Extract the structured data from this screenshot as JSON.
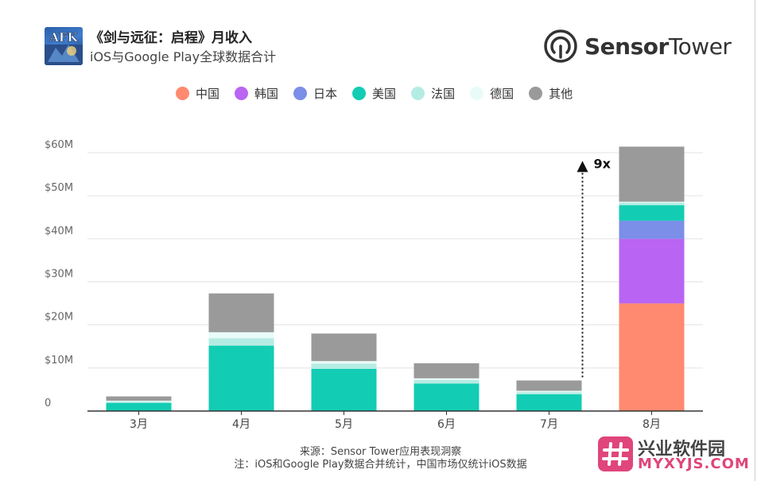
{
  "header": {
    "logo_text": "AFK",
    "title": "《剑与远征：启程》月收入",
    "subtitle": "iOS与Google Play全球数据合计"
  },
  "brand": {
    "name_bold": "Sensor",
    "name_regular": "Tower",
    "icon": "sensor-tower-logo-icon"
  },
  "legend": [
    {
      "name": "中国",
      "color": "#ff8a70"
    },
    {
      "name": "韩国",
      "color": "#b964f2"
    },
    {
      "name": "日本",
      "color": "#7b8ee8"
    },
    {
      "name": "美国",
      "color": "#12cdb3"
    },
    {
      "name": "法国",
      "color": "#b4ece3"
    },
    {
      "name": "德国",
      "color": "#e9fbf8"
    },
    {
      "name": "其他",
      "color": "#9a9a9a"
    }
  ],
  "chart_data": {
    "type": "bar",
    "stacked": true,
    "categories": [
      "3月",
      "4月",
      "5月",
      "6月",
      "7月",
      "8月"
    ],
    "y_ticks": [
      "0",
      "$10M",
      "$20M",
      "$30M",
      "$40M",
      "$50M",
      "$60M"
    ],
    "ylim": [
      0,
      60
    ],
    "y_unit": "$M",
    "grid": true,
    "legend_position": "top",
    "series": [
      {
        "name": "中国",
        "color": "#ff8a70",
        "values": [
          0,
          0,
          0,
          0,
          0,
          25
        ]
      },
      {
        "name": "韩国",
        "color": "#b964f2",
        "values": [
          0,
          0,
          0,
          0,
          0,
          15
        ]
      },
      {
        "name": "日本",
        "color": "#7b8ee8",
        "values": [
          0,
          0,
          0,
          0,
          0,
          4.2
        ]
      },
      {
        "name": "美国",
        "color": "#12cdb3",
        "values": [
          1.9,
          15.2,
          9.8,
          6.4,
          3.9,
          3.6
        ]
      },
      {
        "name": "法国",
        "color": "#b4ece3",
        "values": [
          0.3,
          1.7,
          1.2,
          0.8,
          0.5,
          0.6
        ]
      },
      {
        "name": "德国",
        "color": "#e9fbf8",
        "values": [
          0.2,
          1.4,
          0.6,
          0.4,
          0.3,
          0.2
        ]
      },
      {
        "name": "其他",
        "color": "#9a9a9a",
        "values": [
          1.0,
          9.0,
          6.4,
          3.5,
          2.4,
          12.8
        ]
      }
    ],
    "annotation": {
      "text": "9x",
      "from_category": "7月",
      "to_category": "8月"
    }
  },
  "footer": {
    "source": "来源：Sensor Tower应用表现洞察",
    "note": "注：iOS和Google Play数据合并统计，中国市场仅统计iOS数据"
  },
  "watermark": {
    "line1": "兴业软件园",
    "line2": "MYXYJS.COM",
    "color": "#e0457b"
  }
}
